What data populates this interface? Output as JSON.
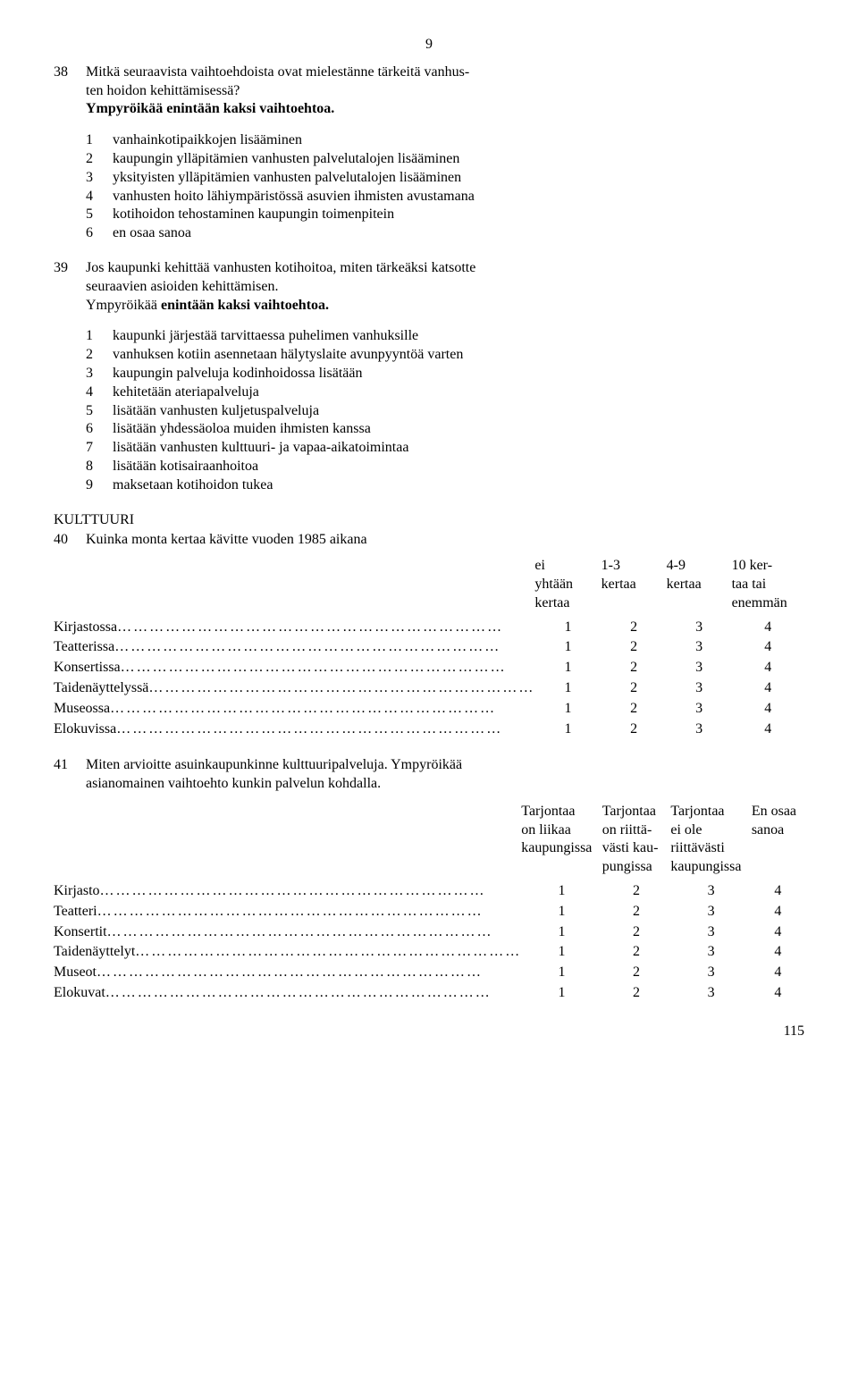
{
  "page_header_number": "9",
  "footer_page_number": "115",
  "q38": {
    "number": "38",
    "text_1": "Mitkä seuraavista vaihtoehdoista ovat mielestänne tärkeitä vanhus-",
    "text_2": "ten hoidon kehittämisessä?",
    "instruction": "Ympyröikää enintään kaksi vaihtoehtoa.",
    "options": [
      {
        "n": "1",
        "t": "vanhainkotipaikkojen lisääminen"
      },
      {
        "n": "2",
        "t": "kaupungin ylläpitämien vanhusten palvelutalojen lisääminen"
      },
      {
        "n": "3",
        "t": "yksityisten ylläpitämien vanhusten palvelutalojen lisääminen"
      },
      {
        "n": "4",
        "t": "vanhusten hoito lähiympäristössä asuvien ihmisten avustamana"
      },
      {
        "n": "5",
        "t": "kotihoidon tehostaminen kaupungin toimenpitein"
      },
      {
        "n": "6",
        "t": "en osaa sanoa"
      }
    ]
  },
  "q39": {
    "number": "39",
    "text_1": "Jos kaupunki kehittää vanhusten kotihoitoa, miten tärkeäksi katsotte",
    "text_2": "seuraavien asioiden kehittämisen.",
    "instruction": "Ympyröikää enintään kaksi vaihtoehtoa.",
    "options": [
      {
        "n": "1",
        "t": "kaupunki järjestää tarvittaessa puhelimen vanhuksille"
      },
      {
        "n": "2",
        "t": "vanhuksen kotiin asennetaan hälytyslaite avunpyyntöä varten"
      },
      {
        "n": "3",
        "t": "kaupungin palveluja kodinhoidossa lisätään"
      },
      {
        "n": "4",
        "t": "kehitetään ateriapalveluja"
      },
      {
        "n": "5",
        "t": "lisätään vanhusten kuljetuspalveluja"
      },
      {
        "n": "6",
        "t": "lisätään yhdessäoloa muiden ihmisten kanssa"
      },
      {
        "n": "7",
        "t": "lisätään vanhusten kulttuuri- ja vapaa-aikatoimintaa"
      },
      {
        "n": "8",
        "t": "lisätään kotisairaanhoitoa"
      },
      {
        "n": "9",
        "t": "maksetaan kotihoidon tukea"
      }
    ]
  },
  "section_culture": "KULTTUURI",
  "q40": {
    "number": "40",
    "text": "Kuinka monta kertaa kävitte vuoden 1985 aikana",
    "headers": [
      {
        "l1": "ei",
        "l2": "yhtään",
        "l3": "kertaa"
      },
      {
        "l1": "1-3",
        "l2": "kertaa",
        "l3": ""
      },
      {
        "l1": "4-9",
        "l2": "kertaa",
        "l3": ""
      },
      {
        "l1": "10 ker-",
        "l2": "taa tai",
        "l3": "enemmän"
      }
    ],
    "rows": [
      {
        "label": "Kirjastossa",
        "v": [
          "1",
          "2",
          "3",
          "4"
        ]
      },
      {
        "label": "Teatterissa",
        "v": [
          "1",
          "2",
          "3",
          "4"
        ]
      },
      {
        "label": "Konsertissa",
        "v": [
          "1",
          "2",
          "3",
          "4"
        ]
      },
      {
        "label": "Taidenäyttelyssä",
        "v": [
          "1",
          "2",
          "3",
          "4"
        ]
      },
      {
        "label": "Museossa",
        "v": [
          "1",
          "2",
          "3",
          "4"
        ]
      },
      {
        "label": "Elokuvissa",
        "v": [
          "1",
          "2",
          "3",
          "4"
        ]
      }
    ]
  },
  "q41": {
    "number": "41",
    "text_1": "Miten arvioitte asuinkaupunkinne kulttuuripalveluja. Ympyröikää",
    "text_2": "asianomainen vaihtoehto kunkin palvelun kohdalla.",
    "headers": [
      {
        "l1": "Tarjontaa",
        "l2": "on liikaa",
        "l3": "kaupungissa"
      },
      {
        "l1": "Tarjontaa",
        "l2": "on riittä-",
        "l3": "västi kau-",
        "l4": "pungissa"
      },
      {
        "l1": "Tarjontaa",
        "l2": "ei ole",
        "l3": "riittävästi",
        "l4": "kaupungissa"
      },
      {
        "l1": "En osaa",
        "l2": "sanoa",
        "l3": "",
        "l4": ""
      }
    ],
    "rows": [
      {
        "label": "Kirjasto",
        "v": [
          "1",
          "2",
          "3",
          "4"
        ]
      },
      {
        "label": "Teatteri",
        "v": [
          "1",
          "2",
          "3",
          "4"
        ]
      },
      {
        "label": "Konsertit",
        "v": [
          "1",
          "2",
          "3",
          "4"
        ]
      },
      {
        "label": "Taidenäyttelyt",
        "v": [
          "1",
          "2",
          "3",
          "4"
        ]
      },
      {
        "label": "Museot",
        "v": [
          "1",
          "2",
          "3",
          "4"
        ]
      },
      {
        "label": "Elokuvat",
        "v": [
          "1",
          "2",
          "3",
          "4"
        ]
      }
    ]
  }
}
